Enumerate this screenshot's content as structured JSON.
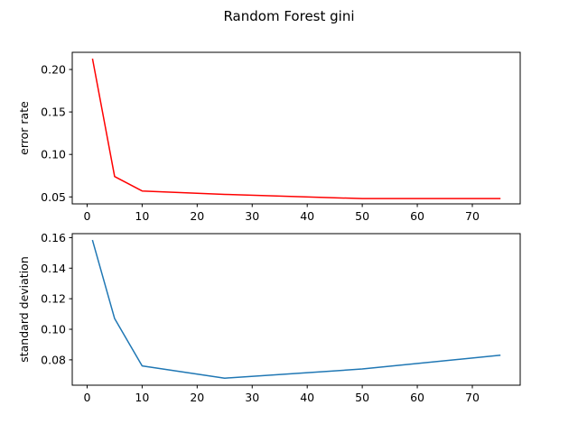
{
  "figure": {
    "suptitle": "Random Forest gini"
  },
  "chart_data": [
    {
      "type": "line",
      "title": "",
      "xlabel": "",
      "ylabel": "error rate",
      "x": [
        1,
        5,
        10,
        25,
        50,
        75
      ],
      "series": [
        {
          "values": [
            0.212,
            0.074,
            0.057,
            0.053,
            0.048,
            0.048
          ],
          "color": "#ff0000"
        }
      ],
      "xlim": [
        -2.7,
        78.7
      ],
      "ylim": [
        0.0418,
        0.2202
      ],
      "xticks": [
        0,
        10,
        20,
        30,
        40,
        50,
        60,
        70
      ],
      "xtick_labels": [
        "0",
        "10",
        "20",
        "30",
        "40",
        "50",
        "60",
        "70"
      ],
      "yticks": [
        0.05,
        0.1,
        0.15,
        0.2
      ],
      "ytick_labels": [
        "0.05",
        "0.10",
        "0.15",
        "0.20"
      ],
      "grid": false
    },
    {
      "type": "line",
      "title": "",
      "xlabel": "",
      "ylabel": "standard deviation",
      "x": [
        1,
        5,
        10,
        25,
        50,
        75
      ],
      "series": [
        {
          "values": [
            0.158,
            0.107,
            0.076,
            0.068,
            0.074,
            0.083
          ],
          "color": "#1f77b4"
        }
      ],
      "xlim": [
        -2.7,
        78.7
      ],
      "ylim": [
        0.0634,
        0.1626
      ],
      "xticks": [
        0,
        10,
        20,
        30,
        40,
        50,
        60,
        70
      ],
      "xtick_labels": [
        "0",
        "10",
        "20",
        "30",
        "40",
        "50",
        "60",
        "70"
      ],
      "yticks": [
        0.08,
        0.1,
        0.12,
        0.14,
        0.16
      ],
      "ytick_labels": [
        "0.08",
        "0.10",
        "0.12",
        "0.14",
        "0.16"
      ],
      "grid": false
    }
  ]
}
